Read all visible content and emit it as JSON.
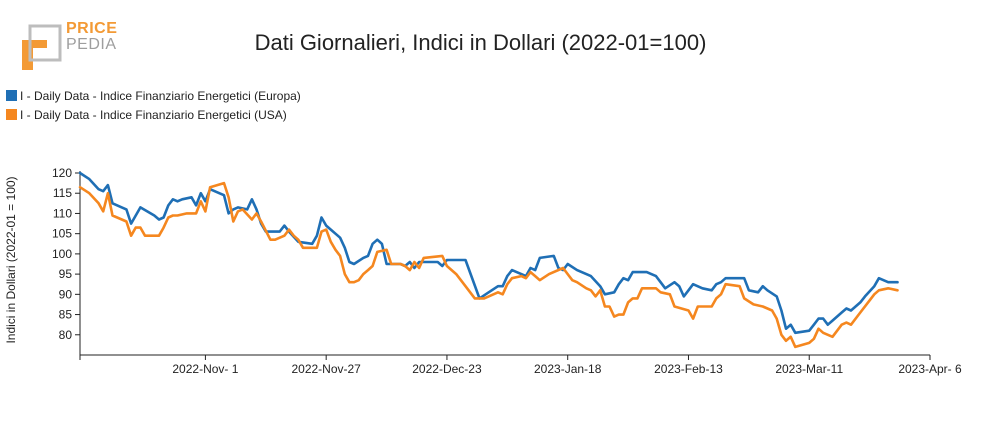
{
  "logo": {
    "line1": "PRICE",
    "line2": "PEDIA"
  },
  "colors": {
    "europa": "#1f6fb5",
    "usa": "#f5871f",
    "logo_orange": "#f39a35",
    "logo_grey": "#9e9e9e"
  },
  "chart_data": {
    "type": "line",
    "title": "Dati Giornalieri, Indici in Dollari (2022-01=100)",
    "ylabel": "Indici in Dollari (2022-01 = 100)",
    "xlabel": "",
    "ylim": [
      75,
      120
    ],
    "yticks": [
      80,
      85,
      90,
      95,
      100,
      105,
      110,
      115,
      120
    ],
    "xlim": [
      "2022-10-05",
      "2023-04-06"
    ],
    "x_ticks": [
      {
        "date": "2022-11-01",
        "label": "2022-Nov- 1"
      },
      {
        "date": "2022-11-27",
        "label": "2022-Nov-27"
      },
      {
        "date": "2022-12-23",
        "label": "2022-Dec-23"
      },
      {
        "date": "2023-01-18",
        "label": "2023-Jan-18"
      },
      {
        "date": "2023-02-13",
        "label": "2023-Feb-13"
      },
      {
        "date": "2023-03-11",
        "label": "2023-Mar-11"
      },
      {
        "date": "2023-04-06",
        "label": "2023-Apr- 6"
      }
    ],
    "legend_position": "top-left",
    "grid": false,
    "series": [
      {
        "name": "I - Daily Data - Indice Finanziario Energetici (Europa)",
        "color": "#1f6fb5",
        "points": [
          [
            "2022-10-05",
            120
          ],
          [
            "2022-10-07",
            118.5
          ],
          [
            "2022-10-09",
            116
          ],
          [
            "2022-10-10",
            115.5
          ],
          [
            "2022-10-11",
            117
          ],
          [
            "2022-10-12",
            112.5
          ],
          [
            "2022-10-14",
            111.5
          ],
          [
            "2022-10-15",
            111
          ],
          [
            "2022-10-16",
            107.5
          ],
          [
            "2022-10-18",
            111.5
          ],
          [
            "2022-10-21",
            109.5
          ],
          [
            "2022-10-22",
            108.5
          ],
          [
            "2022-10-23",
            109
          ],
          [
            "2022-10-24",
            112
          ],
          [
            "2022-10-25",
            113.5
          ],
          [
            "2022-10-26",
            113
          ],
          [
            "2022-10-27",
            113.5
          ],
          [
            "2022-10-29",
            114
          ],
          [
            "2022-10-30",
            112
          ],
          [
            "2022-10-31",
            115
          ],
          [
            "2022-11-01",
            113
          ],
          [
            "2022-11-02",
            116
          ],
          [
            "2022-11-04",
            115
          ],
          [
            "2022-11-05",
            114.5
          ],
          [
            "2022-11-06",
            110
          ],
          [
            "2022-11-07",
            111
          ],
          [
            "2022-11-08",
            111.5
          ],
          [
            "2022-11-10",
            111
          ],
          [
            "2022-11-11",
            113.5
          ],
          [
            "2022-11-12",
            111
          ],
          [
            "2022-11-13",
            107.5
          ],
          [
            "2022-11-14",
            105.5
          ],
          [
            "2022-11-17",
            105.5
          ],
          [
            "2022-11-18",
            107
          ],
          [
            "2022-11-19",
            105.5
          ],
          [
            "2022-11-21",
            103
          ],
          [
            "2022-11-24",
            102.5
          ],
          [
            "2022-11-25",
            104.5
          ],
          [
            "2022-11-26",
            109
          ],
          [
            "2022-11-27",
            107
          ],
          [
            "2022-11-28",
            106
          ],
          [
            "2022-11-29",
            105
          ],
          [
            "2022-11-30",
            104
          ],
          [
            "2022-12-01",
            101.5
          ],
          [
            "2022-12-02",
            98
          ],
          [
            "2022-12-03",
            97.5
          ],
          [
            "2022-12-05",
            99
          ],
          [
            "2022-12-06",
            99.5
          ],
          [
            "2022-12-07",
            102.5
          ],
          [
            "2022-12-08",
            103.5
          ],
          [
            "2022-12-09",
            102.5
          ],
          [
            "2022-12-10",
            97.5
          ],
          [
            "2022-12-13",
            97.5
          ],
          [
            "2022-12-14",
            97
          ],
          [
            "2022-12-15",
            98
          ],
          [
            "2022-12-16",
            96.5
          ],
          [
            "2022-12-17",
            98
          ],
          [
            "2022-12-21",
            98
          ],
          [
            "2022-12-22",
            97
          ],
          [
            "2022-12-23",
            98.5
          ],
          [
            "2022-12-27",
            98.5
          ],
          [
            "2022-12-30",
            89
          ],
          [
            "2023-01-01",
            90.5
          ],
          [
            "2023-01-03",
            92
          ],
          [
            "2023-01-04",
            92
          ],
          [
            "2023-01-05",
            94.5
          ],
          [
            "2023-01-06",
            96
          ],
          [
            "2023-01-07",
            95.5
          ],
          [
            "2023-01-08",
            95
          ],
          [
            "2023-01-09",
            94.5
          ],
          [
            "2023-01-10",
            96.5
          ],
          [
            "2023-01-11",
            96
          ],
          [
            "2023-01-12",
            99
          ],
          [
            "2023-01-15",
            99.5
          ],
          [
            "2023-01-16",
            96.5
          ],
          [
            "2023-01-17",
            96
          ],
          [
            "2023-01-18",
            97.5
          ],
          [
            "2023-01-20",
            96
          ],
          [
            "2023-01-22",
            95
          ],
          [
            "2023-01-23",
            94.5
          ],
          [
            "2023-01-25",
            92
          ],
          [
            "2023-01-26",
            90
          ],
          [
            "2023-01-28",
            90.5
          ],
          [
            "2023-01-29",
            92.5
          ],
          [
            "2023-01-30",
            94
          ],
          [
            "2023-01-31",
            93.5
          ],
          [
            "2023-02-01",
            95.5
          ],
          [
            "2023-02-04",
            95.5
          ],
          [
            "2023-02-05",
            95
          ],
          [
            "2023-02-06",
            94.5
          ],
          [
            "2023-02-07",
            93
          ],
          [
            "2023-02-08",
            91.5
          ],
          [
            "2023-02-10",
            93
          ],
          [
            "2023-02-11",
            92
          ],
          [
            "2023-02-12",
            89.5
          ],
          [
            "2023-02-13",
            91
          ],
          [
            "2023-02-14",
            92.5
          ],
          [
            "2023-02-16",
            91.5
          ],
          [
            "2023-02-18",
            91
          ],
          [
            "2023-02-19",
            92.5
          ],
          [
            "2023-02-20",
            93
          ],
          [
            "2023-02-21",
            94
          ],
          [
            "2023-02-25",
            94
          ],
          [
            "2023-02-26",
            91
          ],
          [
            "2023-02-28",
            90.5
          ],
          [
            "2023-03-01",
            92
          ],
          [
            "2023-03-02",
            91
          ],
          [
            "2023-03-04",
            89.5
          ],
          [
            "2023-03-05",
            86
          ],
          [
            "2023-03-06",
            81.5
          ],
          [
            "2023-03-07",
            82.5
          ],
          [
            "2023-03-08",
            80.5
          ],
          [
            "2023-03-11",
            81
          ],
          [
            "2023-03-12",
            82.5
          ],
          [
            "2023-03-13",
            84
          ],
          [
            "2023-03-14",
            84
          ],
          [
            "2023-03-15",
            82.5
          ],
          [
            "2023-03-16",
            83.5
          ],
          [
            "2023-03-18",
            85.5
          ],
          [
            "2023-03-19",
            86.5
          ],
          [
            "2023-03-20",
            86
          ],
          [
            "2023-03-22",
            88
          ],
          [
            "2023-03-23",
            89.5
          ],
          [
            "2023-03-25",
            92
          ],
          [
            "2023-03-26",
            94
          ],
          [
            "2023-03-28",
            93
          ],
          [
            "2023-03-30",
            93
          ]
        ]
      },
      {
        "name": "I - Daily Data - Indice Finanziario Energetici (USA)",
        "color": "#f5871f",
        "points": [
          [
            "2022-10-05",
            116.5
          ],
          [
            "2022-10-07",
            115
          ],
          [
            "2022-10-09",
            112.5
          ],
          [
            "2022-10-10",
            110.5
          ],
          [
            "2022-10-11",
            115
          ],
          [
            "2022-10-12",
            109.5
          ],
          [
            "2022-10-14",
            108.5
          ],
          [
            "2022-10-15",
            108
          ],
          [
            "2022-10-16",
            104.5
          ],
          [
            "2022-10-17",
            106.5
          ],
          [
            "2022-10-18",
            106.5
          ],
          [
            "2022-10-19",
            104.5
          ],
          [
            "2022-10-22",
            104.5
          ],
          [
            "2022-10-23",
            106.5
          ],
          [
            "2022-10-24",
            109
          ],
          [
            "2022-10-25",
            109.5
          ],
          [
            "2022-10-26",
            109.5
          ],
          [
            "2022-10-28",
            110
          ],
          [
            "2022-10-30",
            110
          ],
          [
            "2022-10-31",
            113
          ],
          [
            "2022-11-01",
            110.5
          ],
          [
            "2022-11-02",
            116.5
          ],
          [
            "2022-11-05",
            117.5
          ],
          [
            "2022-11-06",
            114
          ],
          [
            "2022-11-07",
            108
          ],
          [
            "2022-11-08",
            110.5
          ],
          [
            "2022-11-09",
            111
          ],
          [
            "2022-11-11",
            108.5
          ],
          [
            "2022-11-12",
            110
          ],
          [
            "2022-11-13",
            108
          ],
          [
            "2022-11-15",
            103.5
          ],
          [
            "2022-11-16",
            103.5
          ],
          [
            "2022-11-18",
            104.5
          ],
          [
            "2022-11-19",
            106
          ],
          [
            "2022-11-20",
            104.5
          ],
          [
            "2022-11-21",
            103.5
          ],
          [
            "2022-11-22",
            101.5
          ],
          [
            "2022-11-25",
            101.5
          ],
          [
            "2022-11-26",
            105.5
          ],
          [
            "2022-11-27",
            106
          ],
          [
            "2022-11-28",
            103
          ],
          [
            "2022-11-29",
            101
          ],
          [
            "2022-11-30",
            99.5
          ],
          [
            "2022-12-01",
            95
          ],
          [
            "2022-12-02",
            93
          ],
          [
            "2022-12-03",
            93
          ],
          [
            "2022-12-04",
            93.5
          ],
          [
            "2022-12-05",
            95
          ],
          [
            "2022-12-06",
            96
          ],
          [
            "2022-12-07",
            97
          ],
          [
            "2022-12-08",
            100.5
          ],
          [
            "2022-12-10",
            101
          ],
          [
            "2022-12-11",
            97.5
          ],
          [
            "2022-12-13",
            97.5
          ],
          [
            "2022-12-14",
            97
          ],
          [
            "2022-12-15",
            96
          ],
          [
            "2022-12-16",
            98
          ],
          [
            "2022-12-17",
            96.5
          ],
          [
            "2022-12-18",
            99
          ],
          [
            "2022-12-22",
            99.5
          ],
          [
            "2022-12-23",
            97
          ],
          [
            "2022-12-25",
            95
          ],
          [
            "2022-12-27",
            92
          ],
          [
            "2022-12-29",
            89
          ],
          [
            "2022-12-31",
            89
          ],
          [
            "2023-01-01",
            89.5
          ],
          [
            "2023-01-03",
            90.5
          ],
          [
            "2023-01-04",
            90
          ],
          [
            "2023-01-05",
            92.5
          ],
          [
            "2023-01-06",
            94
          ],
          [
            "2023-01-08",
            94.5
          ],
          [
            "2023-01-09",
            94
          ],
          [
            "2023-01-10",
            95.5
          ],
          [
            "2023-01-11",
            94.5
          ],
          [
            "2023-01-12",
            93.5
          ],
          [
            "2023-01-14",
            95
          ],
          [
            "2023-01-17",
            96.5
          ],
          [
            "2023-01-18",
            95
          ],
          [
            "2023-01-19",
            93.5
          ],
          [
            "2023-01-20",
            93
          ],
          [
            "2023-01-22",
            91.5
          ],
          [
            "2023-01-23",
            91
          ],
          [
            "2023-01-24",
            89.5
          ],
          [
            "2023-01-25",
            91
          ],
          [
            "2023-01-26",
            87
          ],
          [
            "2023-01-27",
            87
          ],
          [
            "2023-01-28",
            84.5
          ],
          [
            "2023-01-29",
            85
          ],
          [
            "2023-01-30",
            85
          ],
          [
            "2023-01-31",
            88
          ],
          [
            "2023-02-01",
            89
          ],
          [
            "2023-02-02",
            89
          ],
          [
            "2023-02-03",
            91.5
          ],
          [
            "2023-02-06",
            91.5
          ],
          [
            "2023-02-07",
            90.5
          ],
          [
            "2023-02-09",
            90
          ],
          [
            "2023-02-10",
            87
          ],
          [
            "2023-02-13",
            86
          ],
          [
            "2023-02-14",
            84
          ],
          [
            "2023-02-15",
            87
          ],
          [
            "2023-02-18",
            87
          ],
          [
            "2023-02-19",
            89
          ],
          [
            "2023-02-20",
            90
          ],
          [
            "2023-02-21",
            92.5
          ],
          [
            "2023-02-24",
            92
          ],
          [
            "2023-02-25",
            89
          ],
          [
            "2023-02-27",
            87.5
          ],
          [
            "2023-03-01",
            87
          ],
          [
            "2023-03-03",
            86
          ],
          [
            "2023-03-04",
            84
          ],
          [
            "2023-03-05",
            80
          ],
          [
            "2023-03-06",
            78.5
          ],
          [
            "2023-03-07",
            79.5
          ],
          [
            "2023-03-08",
            77
          ],
          [
            "2023-03-11",
            78
          ],
          [
            "2023-03-12",
            79
          ],
          [
            "2023-03-13",
            81.5
          ],
          [
            "2023-03-14",
            80.5
          ],
          [
            "2023-03-16",
            79.5
          ],
          [
            "2023-03-18",
            82.5
          ],
          [
            "2023-03-19",
            83
          ],
          [
            "2023-03-20",
            82.5
          ],
          [
            "2023-03-22",
            85.5
          ],
          [
            "2023-03-24",
            88.5
          ],
          [
            "2023-03-25",
            90
          ],
          [
            "2023-03-26",
            91
          ],
          [
            "2023-03-28",
            91.5
          ],
          [
            "2023-03-30",
            91
          ]
        ]
      }
    ]
  }
}
